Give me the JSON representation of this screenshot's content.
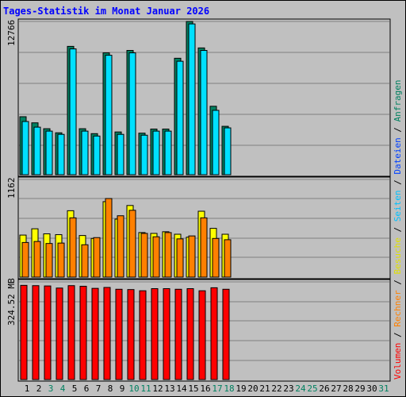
{
  "title": "Tages-Statistik im Monat Januar 2026",
  "y_labels": {
    "top": "12766",
    "middle": "1162",
    "bottom": "324.52 MB"
  },
  "side_legend": [
    {
      "text": "Volumen",
      "color": "#ff0000"
    },
    {
      "text": " / ",
      "color": "#000000"
    },
    {
      "text": "Rechner",
      "color": "#ff8000"
    },
    {
      "text": " / ",
      "color": "#000000"
    },
    {
      "text": "Besuche",
      "color": "#e0e000"
    },
    {
      "text": " / ",
      "color": "#000000"
    },
    {
      "text": "Seiten",
      "color": "#00c0ff"
    },
    {
      "text": " / ",
      "color": "#000000"
    },
    {
      "text": "Dateien",
      "color": "#0040ff"
    },
    {
      "text": " / ",
      "color": "#000000"
    },
    {
      "text": "Anfragen",
      "color": "#008060"
    }
  ],
  "x_labels": [
    "1",
    "2",
    "3",
    "4",
    "5",
    "6",
    "7",
    "8",
    "9",
    "10",
    "11",
    "12",
    "13",
    "14",
    "15",
    "16",
    "17",
    "18",
    "19",
    "20",
    "21",
    "22",
    "23",
    "24",
    "25",
    "26",
    "27",
    "28",
    "29",
    "30",
    "31"
  ],
  "weekend_days": [
    3,
    4,
    10,
    11,
    17,
    18,
    24,
    25,
    31
  ],
  "colors": {
    "anfragen": "#008060",
    "dateien": "#0040ff",
    "seiten": "#00e0ff",
    "besuche": "#ffff00",
    "rechner": "#ff8000",
    "volumen": "#ff0000",
    "weekend_label": "#008060",
    "weekday_label": "#000000"
  },
  "chart_data": [
    {
      "type": "bar",
      "panel": "requests",
      "categories": [
        "1",
        "2",
        "3",
        "4",
        "5",
        "6",
        "7",
        "8",
        "9",
        "10",
        "11",
        "12",
        "13",
        "14",
        "15",
        "16",
        "17",
        "18"
      ],
      "series": [
        {
          "name": "Anfragen",
          "values": [
            4830,
            4320,
            3830,
            3490,
            10690,
            3830,
            3420,
            10150,
            3560,
            10350,
            3460,
            3800,
            3800,
            9700,
            12766,
            10560,
            5700,
            4030
          ]
        },
        {
          "name": "Seiten",
          "values": [
            4430,
            3960,
            3630,
            3360,
            10480,
            3630,
            3220,
            9950,
            3360,
            10150,
            3290,
            3630,
            3630,
            9450,
            12560,
            10350,
            5360,
            3900
          ]
        }
      ],
      "ylim": [
        0,
        12766
      ]
    },
    {
      "type": "bar",
      "panel": "visits",
      "categories": [
        "1",
        "2",
        "3",
        "4",
        "5",
        "6",
        "7",
        "8",
        "9",
        "10",
        "11",
        "12",
        "13",
        "14",
        "15",
        "16",
        "17",
        "18"
      ],
      "series": [
        {
          "name": "Besuche",
          "values": [
            500,
            575,
            515,
            505,
            790,
            495,
            460,
            898,
            690,
            852,
            530,
            520,
            540,
            510,
            475,
            784,
            580,
            510
          ]
        },
        {
          "name": "Rechner",
          "values": [
            412,
            424,
            400,
            405,
            705,
            385,
            470,
            935,
            730,
            795,
            520,
            480,
            530,
            455,
            490,
            705,
            460,
            445
          ]
        }
      ],
      "ylim": [
        0,
        1162
      ]
    },
    {
      "type": "bar",
      "panel": "volume",
      "categories": [
        "1",
        "2",
        "3",
        "4",
        "5",
        "6",
        "7",
        "8",
        "9",
        "10",
        "11",
        "12",
        "13",
        "14",
        "15",
        "16",
        "17",
        "18"
      ],
      "series": [
        {
          "name": "Volumen",
          "values": [
            313,
            312,
            311,
            304,
            312,
            310,
            303,
            306,
            300,
            299,
            295,
            302,
            302,
            300,
            302,
            295,
            305,
            300
          ]
        }
      ],
      "ylim": [
        0,
        324.52
      ],
      "unit": "MB"
    }
  ]
}
